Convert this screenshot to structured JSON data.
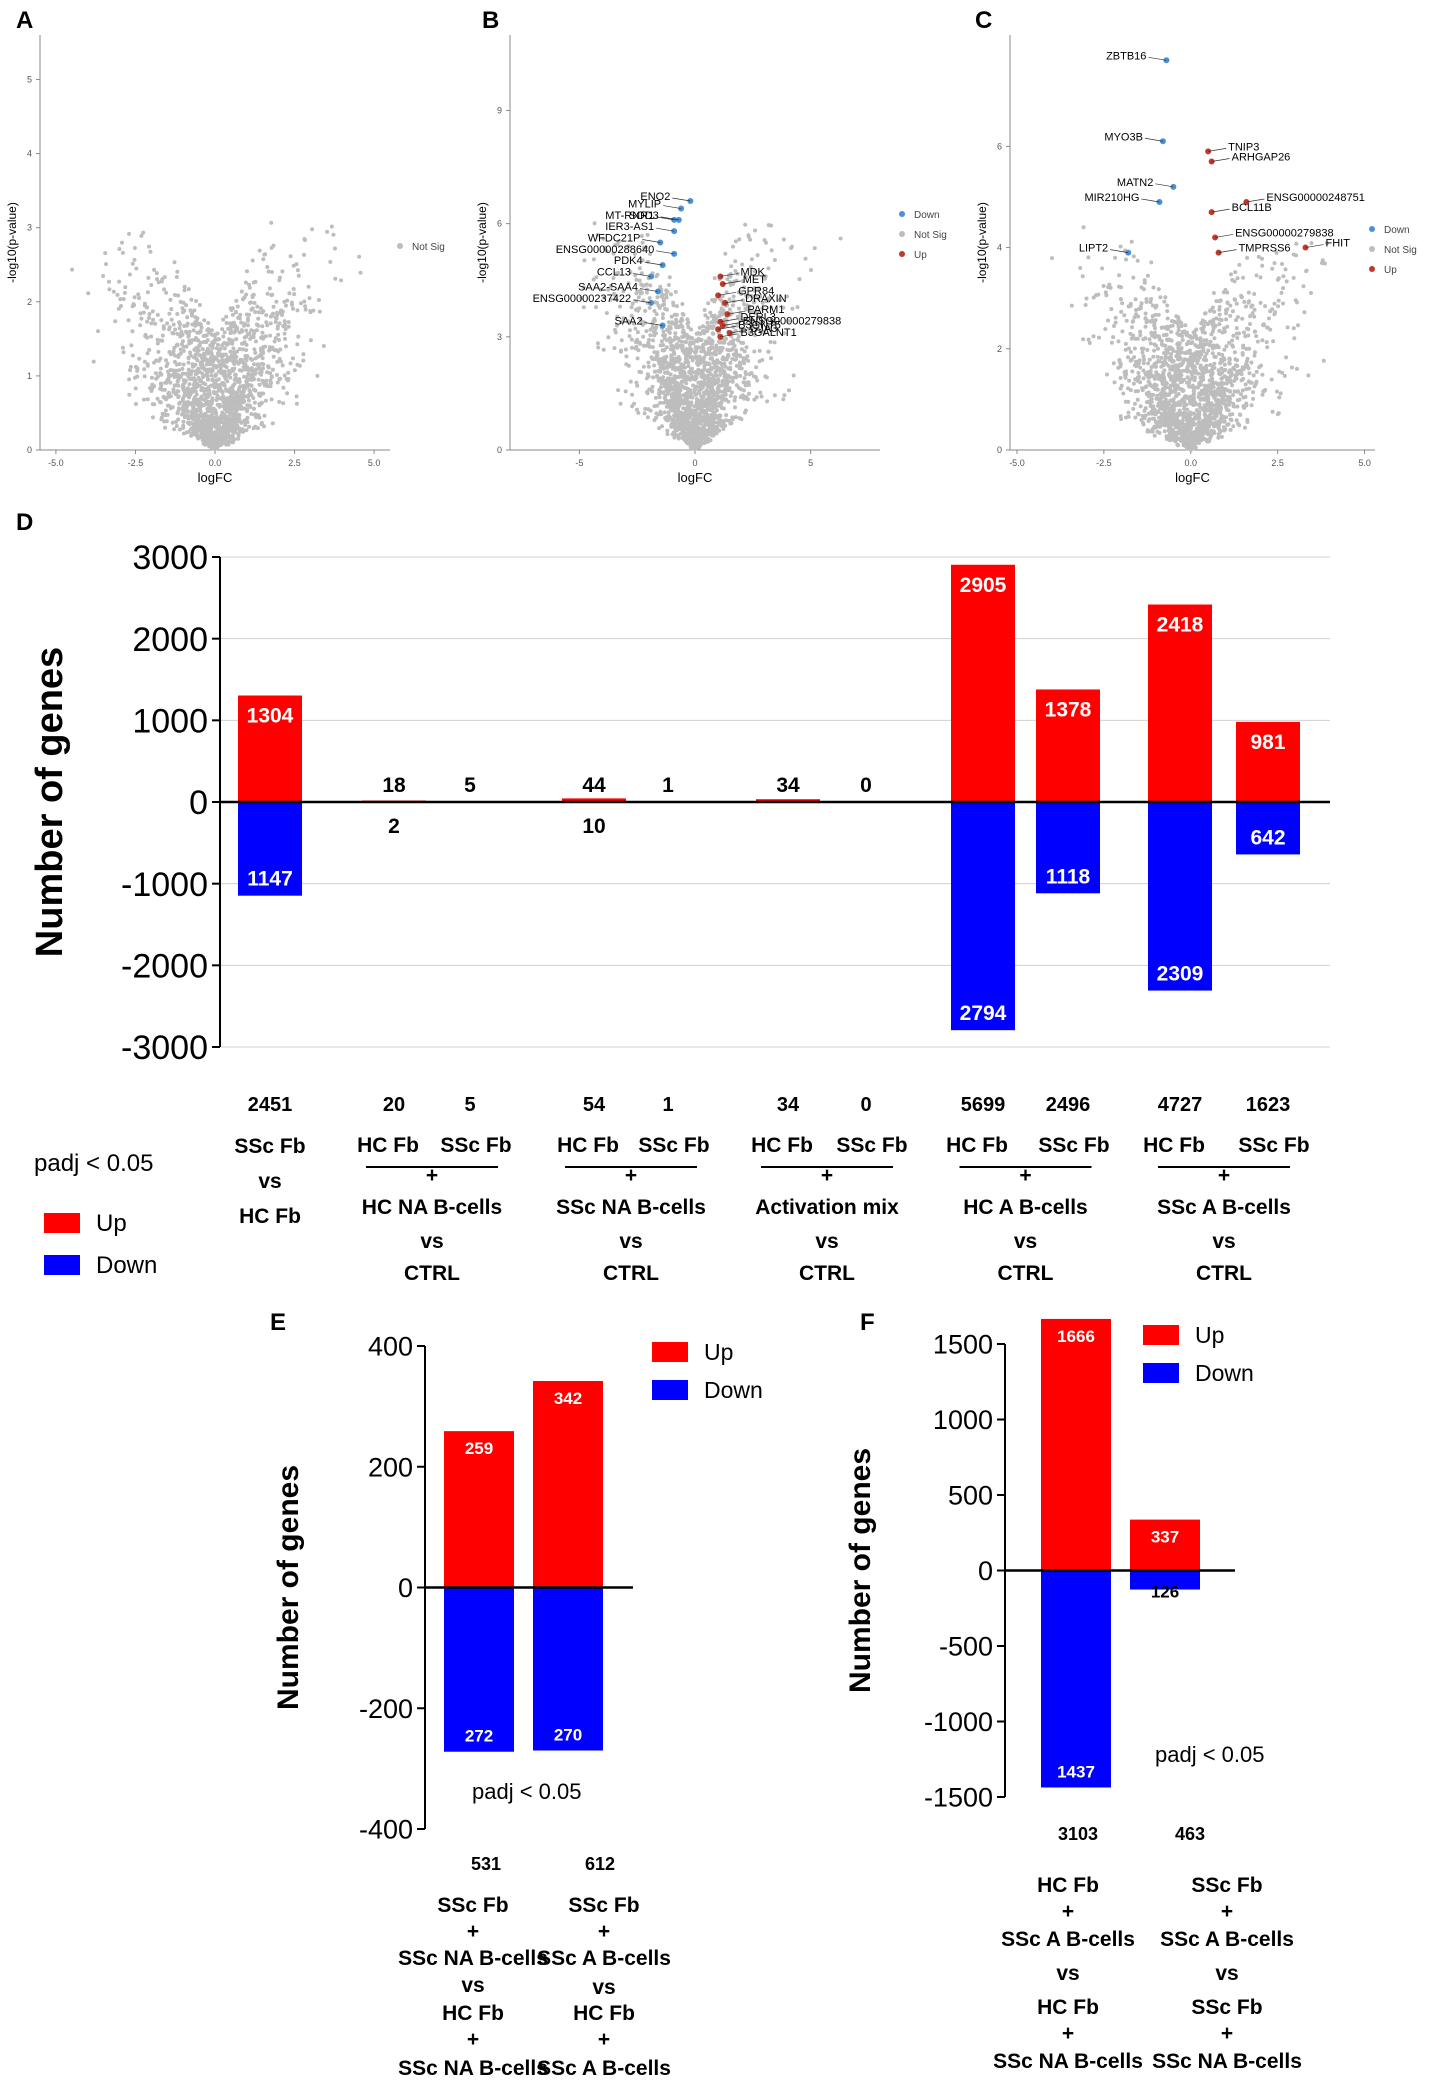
{
  "chart_data": [
    {
      "panel": "A",
      "type": "scatter",
      "xlabel": "logFC",
      "ylabel": "-log10(p-value)",
      "xlim": [
        -5.5,
        5.5
      ],
      "ylim": [
        0,
        5.6
      ],
      "xticks": [
        "-5.0",
        "-2.5",
        "0.0",
        "2.5",
        "5.0"
      ],
      "yticks": [
        "0",
        "1",
        "2",
        "3",
        "4",
        "5"
      ],
      "legend": [
        {
          "name": "Not Sig",
          "color": "#bdbdbd"
        }
      ],
      "highlighted": []
    },
    {
      "panel": "B",
      "type": "scatter",
      "xlabel": "logFC",
      "ylabel": "-log10(p-value)",
      "xlim": [
        -8,
        8
      ],
      "ylim": [
        0,
        11
      ],
      "xticks": [
        "-5",
        "0",
        "5"
      ],
      "yticks": [
        "0",
        "3",
        "6",
        "9"
      ],
      "legend": [
        {
          "name": "Down",
          "color": "#4a90d9"
        },
        {
          "name": "Not Sig",
          "color": "#bdbdbd"
        },
        {
          "name": "Up",
          "color": "#c0392b"
        }
      ],
      "highlighted": [
        {
          "label": "MYLIP",
          "x": -0.6,
          "y": 6.4,
          "dir": "down"
        },
        {
          "label": "ENO2",
          "x": -0.2,
          "y": 6.6,
          "dir": "down"
        },
        {
          "label": "MT-RNR1",
          "x": -0.9,
          "y": 6.1,
          "dir": "down"
        },
        {
          "label": "SOD3",
          "x": -0.7,
          "y": 6.1,
          "dir": "down"
        },
        {
          "label": "IER3-AS1",
          "x": -0.9,
          "y": 5.8,
          "dir": "down"
        },
        {
          "label": "WFDC21P",
          "x": -1.5,
          "y": 5.5,
          "dir": "down"
        },
        {
          "label": "ENSG00000288640",
          "x": -0.9,
          "y": 5.2,
          "dir": "down"
        },
        {
          "label": "PDK4",
          "x": -1.4,
          "y": 4.9,
          "dir": "down"
        },
        {
          "label": "CCL13",
          "x": -1.9,
          "y": 4.6,
          "dir": "down"
        },
        {
          "label": "SAA2-SAA4",
          "x": -1.6,
          "y": 4.2,
          "dir": "down"
        },
        {
          "label": "ENSG00000237422",
          "x": -1.9,
          "y": 3.9,
          "dir": "down"
        },
        {
          "label": "SAA2",
          "x": -1.4,
          "y": 3.3,
          "dir": "down"
        },
        {
          "label": "MDK",
          "x": 1.1,
          "y": 4.6,
          "dir": "up"
        },
        {
          "label": "MET",
          "x": 1.2,
          "y": 4.4,
          "dir": "up"
        },
        {
          "label": "GPR84",
          "x": 1.0,
          "y": 4.1,
          "dir": "up"
        },
        {
          "label": "DRAXIN",
          "x": 1.3,
          "y": 3.9,
          "dir": "up"
        },
        {
          "label": "PARM1",
          "x": 1.4,
          "y": 3.6,
          "dir": "up"
        },
        {
          "label": "DERL3",
          "x": 1.1,
          "y": 3.4,
          "dir": "up"
        },
        {
          "label": "ENSG00000279838",
          "x": 1.2,
          "y": 3.3,
          "dir": "up"
        },
        {
          "label": "B3GNT5",
          "x": 1.0,
          "y": 3.2,
          "dir": "up"
        },
        {
          "label": "GJA3",
          "x": 1.5,
          "y": 3.1,
          "dir": "up"
        },
        {
          "label": "B3GALNT1",
          "x": 1.1,
          "y": 3.0,
          "dir": "up"
        }
      ]
    },
    {
      "panel": "C",
      "type": "scatter",
      "xlabel": "logFC",
      "ylabel": "-log10(p-value)",
      "xlim": [
        -5.2,
        5.3
      ],
      "ylim": [
        0,
        8.2
      ],
      "xticks": [
        "-5.0",
        "-2.5",
        "0.0",
        "2.5",
        "5.0"
      ],
      "yticks": [
        "0",
        "2",
        "4",
        "6"
      ],
      "legend": [
        {
          "name": "Down",
          "color": "#4a90d9"
        },
        {
          "name": "Not Sig",
          "color": "#bdbdbd"
        },
        {
          "name": "Up",
          "color": "#c0392b"
        }
      ],
      "highlighted": [
        {
          "label": "ZBTB16",
          "x": -0.7,
          "y": 7.7,
          "dir": "down"
        },
        {
          "label": "MYO3B",
          "x": -0.8,
          "y": 6.1,
          "dir": "down"
        },
        {
          "label": "TNIP3",
          "x": 0.5,
          "y": 5.9,
          "dir": "up"
        },
        {
          "label": "ARHGAP26",
          "x": 0.6,
          "y": 5.7,
          "dir": "up"
        },
        {
          "label": "MATN2",
          "x": -0.5,
          "y": 5.2,
          "dir": "down"
        },
        {
          "label": "MIR210HG",
          "x": -0.9,
          "y": 4.9,
          "dir": "down"
        },
        {
          "label": "ENSG00000248751",
          "x": 1.6,
          "y": 4.9,
          "dir": "up"
        },
        {
          "label": "BCL11B",
          "x": 0.6,
          "y": 4.7,
          "dir": "up"
        },
        {
          "label": "LIPT2",
          "x": -1.8,
          "y": 3.9,
          "dir": "down"
        },
        {
          "label": "ENSG00000279838",
          "x": 0.7,
          "y": 4.2,
          "dir": "up"
        },
        {
          "label": "TMPRSS6",
          "x": 0.8,
          "y": 3.9,
          "dir": "up"
        },
        {
          "label": "FHIT",
          "x": 3.3,
          "y": 4.0,
          "dir": "up"
        }
      ]
    },
    {
      "panel": "D",
      "type": "bar",
      "ylabel": "Number of genes",
      "ylim": [
        -3000,
        3000
      ],
      "yticks": [
        "3000",
        "2000",
        "1000",
        "0",
        "-1000",
        "-2000",
        "-3000"
      ],
      "note": "padj < 0.05",
      "legend": [
        {
          "name": "Up",
          "color": "#ff0000"
        },
        {
          "name": "Down",
          "color": "#0000ff"
        }
      ],
      "bars": [
        {
          "up": 1304,
          "down": 1147,
          "up_label": "1304",
          "down_label": "1147",
          "total": "2451"
        },
        {
          "up": 18,
          "down": 2,
          "up_label": "18",
          "down_label": "2",
          "total": "20"
        },
        {
          "up": 5,
          "down": 0,
          "up_label": "5",
          "down_label": "",
          "total": "5"
        },
        {
          "up": 44,
          "down": 10,
          "up_label": "44",
          "down_label": "10",
          "total": "54"
        },
        {
          "up": 1,
          "down": 0,
          "up_label": "1",
          "down_label": "",
          "total": "1"
        },
        {
          "up": 34,
          "down": 0,
          "up_label": "34",
          "down_label": "",
          "total": "34"
        },
        {
          "up": 0,
          "down": 0,
          "up_label": "0",
          "down_label": "",
          "total": "0"
        },
        {
          "up": 2905,
          "down": 2794,
          "up_label": "2905",
          "down_label": "2794",
          "total": "5699"
        },
        {
          "up": 1378,
          "down": 1118,
          "up_label": "1378",
          "down_label": "1118",
          "total": "2496"
        },
        {
          "up": 2418,
          "down": 2309,
          "up_label": "2418",
          "down_label": "2309",
          "total": "4727"
        },
        {
          "up": 981,
          "down": 642,
          "up_label": "981",
          "down_label": "642",
          "total": "1623"
        }
      ],
      "groups": [
        {
          "lines": [
            "SSc Fb",
            "vs",
            "HC Fb"
          ]
        },
        {
          "pair": [
            "HC Fb",
            "SSc Fb"
          ],
          "lines": [
            "+",
            "HC NA B-cells",
            "vs",
            "CTRL"
          ]
        },
        {
          "pair": [
            "HC Fb",
            "SSc Fb"
          ],
          "lines": [
            "+",
            "SSc NA B-cells",
            "vs",
            "CTRL"
          ]
        },
        {
          "pair": [
            "HC Fb",
            "SSc Fb"
          ],
          "lines": [
            "+",
            "Activation mix",
            "vs",
            "CTRL"
          ]
        },
        {
          "pair": [
            "HC Fb",
            "SSc Fb"
          ],
          "lines": [
            "+",
            "HC A B-cells",
            "vs",
            "CTRL"
          ]
        },
        {
          "pair": [
            "HC Fb",
            "SSc Fb"
          ],
          "lines": [
            "+",
            "SSc A B-cells",
            "vs",
            "CTRL"
          ]
        }
      ]
    },
    {
      "panel": "E",
      "type": "bar",
      "ylabel": "Number of genes",
      "ylim": [
        -400,
        400
      ],
      "yticks": [
        "400",
        "200",
        "0",
        "-200",
        "-400"
      ],
      "note": "padj < 0.05",
      "legend": [
        {
          "name": "Up",
          "color": "#ff0000"
        },
        {
          "name": "Down",
          "color": "#0000ff"
        }
      ],
      "bars": [
        {
          "up": 259,
          "down": 272,
          "up_label": "259",
          "down_label": "272",
          "total": "531",
          "lines": [
            "SSc Fb",
            "+",
            "SSc NA B-cells",
            "vs",
            "HC Fb",
            "+",
            "SSc NA B-cells"
          ]
        },
        {
          "up": 342,
          "down": 270,
          "up_label": "342",
          "down_label": "270",
          "total": "612",
          "lines": [
            "SSc Fb",
            "+",
            "SSc A B-cells",
            "vs",
            "HC Fb",
            "+",
            "SSc A B-cells"
          ]
        }
      ]
    },
    {
      "panel": "F",
      "type": "bar",
      "ylabel": "Number of genes",
      "ylim": [
        -1500,
        1500
      ],
      "yticks": [
        "1500",
        "1000",
        "500",
        "0",
        "-500",
        "-1000",
        "-1500"
      ],
      "note": "padj < 0.05",
      "legend": [
        {
          "name": "Up",
          "color": "#ff0000"
        },
        {
          "name": "Down",
          "color": "#0000ff"
        }
      ],
      "bars": [
        {
          "up": 1666,
          "down": 1437,
          "up_label": "1666",
          "down_label": "1437",
          "total": "3103",
          "lines": [
            "HC Fb",
            "+",
            "SSc A B-cells",
            "vs",
            "HC Fb",
            "+",
            "SSc NA B-cells"
          ]
        },
        {
          "up": 337,
          "down": 126,
          "up_label": "337",
          "down_label": "126",
          "total": "463",
          "lines": [
            "SSc Fb",
            "+",
            "SSc A B-cells",
            "vs",
            "SSc Fb",
            "+",
            "SSc NA B-cells"
          ]
        }
      ]
    }
  ]
}
